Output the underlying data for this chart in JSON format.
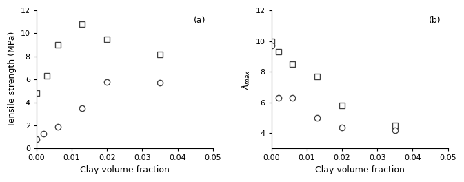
{
  "panel_a": {
    "label": "(a)",
    "xlabel": "Clay volume fraction",
    "ylabel": "Tensile strength (MPa)",
    "xlim": [
      0,
      0.05
    ],
    "ylim": [
      0,
      12
    ],
    "xticks": [
      0.0,
      0.01,
      0.02,
      0.03,
      0.04,
      0.05
    ],
    "yticks": [
      0,
      2,
      4,
      6,
      8,
      10,
      12
    ],
    "NR_x": [
      0.0,
      0.003,
      0.006,
      0.013,
      0.02,
      0.035
    ],
    "NR_y": [
      4.8,
      6.3,
      9.0,
      10.8,
      9.5,
      8.2
    ],
    "DNR_x": [
      0.0,
      0.002,
      0.006,
      0.013,
      0.02,
      0.035
    ],
    "DNR_y": [
      0.8,
      1.3,
      1.9,
      3.5,
      5.8,
      5.7
    ]
  },
  "panel_b": {
    "label": "(b)",
    "xlabel": "Clay volume fraction",
    "ylabel": "$\\lambda_{max}$",
    "xlim": [
      0,
      0.05
    ],
    "ylim": [
      3,
      12
    ],
    "xticks": [
      0.0,
      0.01,
      0.02,
      0.03,
      0.04,
      0.05
    ],
    "yticks": [
      4,
      6,
      8,
      10,
      12
    ],
    "NR_x": [
      0.0,
      0.002,
      0.006,
      0.013,
      0.02,
      0.035
    ],
    "NR_y": [
      9.98,
      9.3,
      8.5,
      7.7,
      5.8,
      4.5
    ],
    "DNR_x": [
      0.0,
      0.002,
      0.006,
      0.013,
      0.02,
      0.035
    ],
    "DNR_y": [
      9.7,
      6.3,
      6.3,
      5.0,
      4.35,
      4.2
    ]
  },
  "marker_NR": "s",
  "marker_DNR": "o",
  "marker_size": 6,
  "marker_color": "white",
  "marker_edgecolor": "#404040",
  "marker_edgewidth": 1.0,
  "label_fontsize": 9,
  "tick_fontsize": 8,
  "panel_label_fontsize": 9,
  "fig_width": 6.73,
  "fig_height": 2.64,
  "dpi": 100
}
